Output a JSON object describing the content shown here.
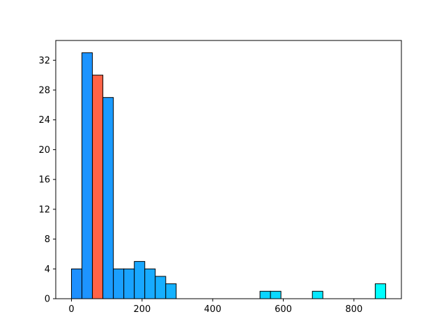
{
  "chart_data": {
    "type": "bar",
    "title": "",
    "xlabel": "",
    "ylabel": "",
    "xlim": [
      -44.5,
      934.5
    ],
    "ylim": [
      0,
      34.65
    ],
    "grid": false,
    "bin_width": 29.67,
    "bins": [
      {
        "x0": 0.0,
        "x1": 29.67,
        "count": 4
      },
      {
        "x0": 29.67,
        "x1": 59.33,
        "count": 33
      },
      {
        "x0": 59.33,
        "x1": 89.0,
        "count": 30
      },
      {
        "x0": 89.0,
        "x1": 118.67,
        "count": 27
      },
      {
        "x0": 118.67,
        "x1": 148.33,
        "count": 4
      },
      {
        "x0": 148.33,
        "x1": 178.0,
        "count": 4
      },
      {
        "x0": 178.0,
        "x1": 207.67,
        "count": 5
      },
      {
        "x0": 207.67,
        "x1": 237.33,
        "count": 4
      },
      {
        "x0": 237.33,
        "x1": 267.0,
        "count": 3
      },
      {
        "x0": 267.0,
        "x1": 296.67,
        "count": 2
      },
      {
        "x0": 296.67,
        "x1": 326.33,
        "count": 0
      },
      {
        "x0": 326.33,
        "x1": 356.0,
        "count": 0
      },
      {
        "x0": 356.0,
        "x1": 385.67,
        "count": 0
      },
      {
        "x0": 385.67,
        "x1": 415.33,
        "count": 0
      },
      {
        "x0": 415.33,
        "x1": 445.0,
        "count": 0
      },
      {
        "x0": 445.0,
        "x1": 474.67,
        "count": 0
      },
      {
        "x0": 474.67,
        "x1": 504.33,
        "count": 0
      },
      {
        "x0": 504.33,
        "x1": 534.0,
        "count": 0
      },
      {
        "x0": 534.0,
        "x1": 563.67,
        "count": 1
      },
      {
        "x0": 563.67,
        "x1": 593.33,
        "count": 1
      },
      {
        "x0": 593.33,
        "x1": 623.0,
        "count": 0
      },
      {
        "x0": 623.0,
        "x1": 652.67,
        "count": 0
      },
      {
        "x0": 652.67,
        "x1": 682.33,
        "count": 0
      },
      {
        "x0": 682.33,
        "x1": 712.0,
        "count": 1
      },
      {
        "x0": 712.0,
        "x1": 741.67,
        "count": 0
      },
      {
        "x0": 741.67,
        "x1": 771.33,
        "count": 0
      },
      {
        "x0": 771.33,
        "x1": 801.0,
        "count": 0
      },
      {
        "x0": 801.0,
        "x1": 830.67,
        "count": 0
      },
      {
        "x0": 830.67,
        "x1": 860.33,
        "count": 0
      },
      {
        "x0": 860.33,
        "x1": 890.0,
        "count": 2
      }
    ],
    "highlight_bin_index": 2,
    "colors": {
      "gradient_start": "#1e90ff",
      "gradient_end": "#00ffff",
      "highlight": "#ff6347",
      "edge": "#000000"
    },
    "x_ticks": [
      0,
      200,
      400,
      600,
      800
    ],
    "y_ticks": [
      0,
      4,
      8,
      12,
      16,
      20,
      24,
      28,
      32
    ]
  }
}
